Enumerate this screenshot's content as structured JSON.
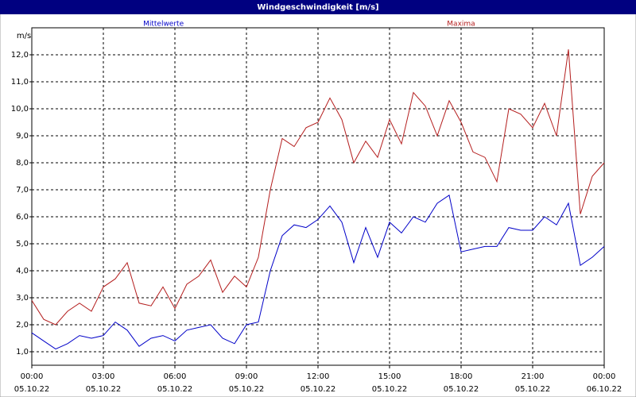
{
  "chart_data": {
    "type": "line",
    "title": "Windgeschwindigkeit [m/s]",
    "y_label": "m/s",
    "x": [
      0,
      0.5,
      1,
      1.5,
      2,
      2.5,
      3,
      3.5,
      4,
      4.5,
      5,
      5.5,
      6,
      6.5,
      7,
      7.5,
      8,
      8.5,
      9,
      9.5,
      10,
      10.5,
      11,
      11.5,
      12,
      12.5,
      13,
      13.5,
      14,
      14.5,
      15,
      15.5,
      16,
      16.5,
      17,
      17.5,
      18,
      18.5,
      19,
      19.5,
      20,
      20.5,
      21,
      21.5,
      22,
      22.5,
      23,
      23.5,
      24
    ],
    "series": [
      {
        "name": "Mittelwerte",
        "color": "#0000c8",
        "values": [
          1.7,
          1.4,
          1.1,
          1.3,
          1.6,
          1.5,
          1.6,
          2.1,
          1.8,
          1.2,
          1.5,
          1.6,
          1.4,
          1.8,
          1.9,
          2.0,
          1.5,
          1.3,
          2.0,
          2.1,
          4.0,
          5.3,
          5.7,
          5.6,
          5.9,
          6.4,
          5.8,
          4.3,
          5.6,
          4.5,
          5.8,
          5.4,
          6.0,
          5.8,
          6.5,
          6.8,
          4.7,
          4.8,
          4.9,
          4.9,
          5.6,
          5.5,
          5.5,
          6.0,
          5.7,
          6.5,
          4.2,
          4.5,
          4.9
        ]
      },
      {
        "name": "Maxima",
        "color": "#b41e1e",
        "values": [
          2.9,
          2.2,
          2.0,
          2.5,
          2.8,
          2.5,
          3.4,
          3.7,
          4.3,
          2.8,
          2.7,
          3.4,
          2.6,
          3.5,
          3.8,
          4.4,
          3.2,
          3.8,
          3.4,
          4.5,
          7.0,
          8.9,
          8.6,
          9.3,
          9.5,
          10.4,
          9.6,
          8.0,
          8.8,
          8.2,
          9.6,
          8.7,
          10.6,
          10.1,
          9.0,
          10.3,
          9.5,
          8.4,
          8.2,
          7.3,
          10.0,
          9.8,
          9.3,
          10.2,
          9.0,
          12.2,
          6.1,
          7.5,
          8.0
        ]
      }
    ],
    "xlim": [
      0,
      24
    ],
    "xticks": [
      {
        "value": 0,
        "label": "00:00",
        "date": "05.10.22"
      },
      {
        "value": 3,
        "label": "03:00",
        "date": "05.10.22"
      },
      {
        "value": 6,
        "label": "06:00",
        "date": "05.10.22"
      },
      {
        "value": 9,
        "label": "09:00",
        "date": "05.10.22"
      },
      {
        "value": 12,
        "label": "12:00",
        "date": "05.10.22"
      },
      {
        "value": 15,
        "label": "15:00",
        "date": "05.10.22"
      },
      {
        "value": 18,
        "label": "18:00",
        "date": "05.10.22"
      },
      {
        "value": 21,
        "label": "21:00",
        "date": "05.10.22"
      },
      {
        "value": 24,
        "label": "00:00",
        "date": "06.10.22"
      }
    ],
    "ylim": [
      0.5,
      13
    ],
    "yticks": [
      {
        "value": 1,
        "label": "1,0"
      },
      {
        "value": 2,
        "label": "2,0"
      },
      {
        "value": 3,
        "label": "3,0"
      },
      {
        "value": 4,
        "label": "4,0"
      },
      {
        "value": 5,
        "label": "5,0"
      },
      {
        "value": 6,
        "label": "6,0"
      },
      {
        "value": 7,
        "label": "7,0"
      },
      {
        "value": 8,
        "label": "8,0"
      },
      {
        "value": 9,
        "label": "9,0"
      },
      {
        "value": 10,
        "label": "10,0"
      },
      {
        "value": 11,
        "label": "11,0"
      },
      {
        "value": 12,
        "label": "12,0"
      }
    ],
    "grid": true
  }
}
